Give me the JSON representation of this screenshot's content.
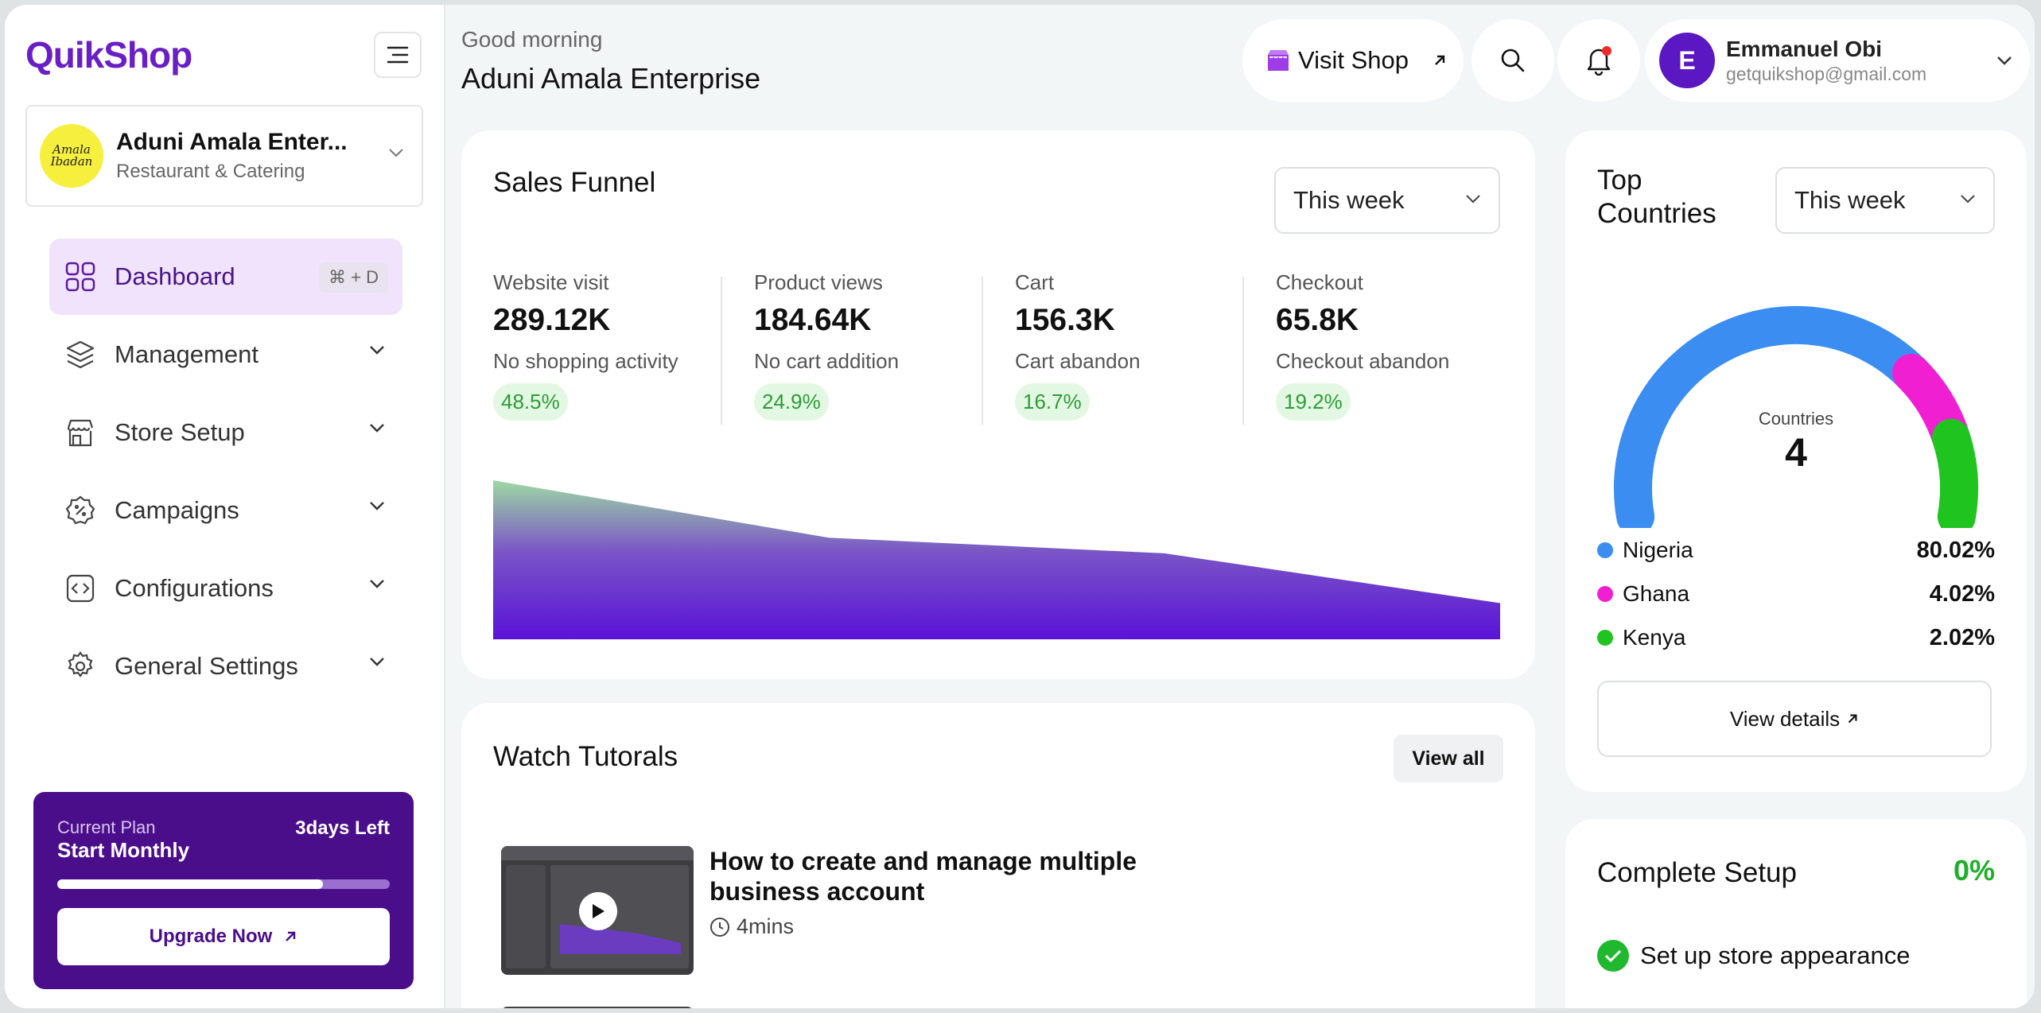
{
  "brand": {
    "logo": "QuikShop"
  },
  "business": {
    "logo_text": "Amala Ibadan",
    "name": "Aduni Amala Enter...",
    "type": "Restaurant & Catering"
  },
  "nav": {
    "dashboard": {
      "label": "Dashboard",
      "shortcut": "⌘ + D"
    },
    "management": "Management",
    "store_setup": "Store Setup",
    "campaigns": "Campaigns",
    "configurations": "Configurations",
    "general_settings": "General Settings"
  },
  "plan": {
    "label": "Current Plan",
    "name": "Start Monthly",
    "days_left": "3days Left",
    "progress": 0.8,
    "upgrade_label": "Upgrade Now"
  },
  "header": {
    "greeting": "Good morning",
    "business_name": "Aduni Amala Enterprise",
    "visit_shop": "Visit Shop",
    "user_name": "Emmanuel Obi",
    "user_email": "getquikshop@gmail.com",
    "user_initial": "E"
  },
  "funnel": {
    "title": "Sales Funnel",
    "period": "This week",
    "metrics": [
      {
        "label": "Website visit",
        "value": "289.12K",
        "sub": "No shopping activity",
        "pct": "48.5%"
      },
      {
        "label": "Product views",
        "value": "184.64K",
        "sub": "No cart addition",
        "pct": "24.9%"
      },
      {
        "label": "Cart",
        "value": "156.3K",
        "sub": "Cart abandon",
        "pct": "16.7%"
      },
      {
        "label": "Checkout",
        "value": "65.8K",
        "sub": "Checkout abandon",
        "pct": "19.2%"
      }
    ]
  },
  "chart_data": {
    "type": "area",
    "categories": [
      "Website visit",
      "Product views",
      "Cart",
      "Checkout"
    ],
    "values": [
      289.12,
      184.64,
      156.3,
      65.8
    ],
    "ylim": [
      0,
      289.12
    ]
  },
  "tutorials": {
    "title": "Watch Tutorals",
    "view_all": "View all",
    "items": [
      {
        "title": "How to create and manage multiple business account",
        "duration": "4mins"
      }
    ]
  },
  "countries": {
    "title": "Top Countries",
    "period": "This week",
    "center_label": "Countries",
    "count": "4",
    "items": [
      {
        "name": "Nigeria",
        "pct": "80.02%",
        "color": "#3b8df2"
      },
      {
        "name": "Ghana",
        "pct": "4.02%",
        "color": "#f01fd2"
      },
      {
        "name": "Kenya",
        "pct": "2.02%",
        "color": "#1fc41f"
      }
    ],
    "details_label": "View details"
  },
  "setup": {
    "title": "Complete Setup",
    "pct": "0%",
    "items": [
      {
        "label": "Set up store appearance"
      }
    ]
  }
}
